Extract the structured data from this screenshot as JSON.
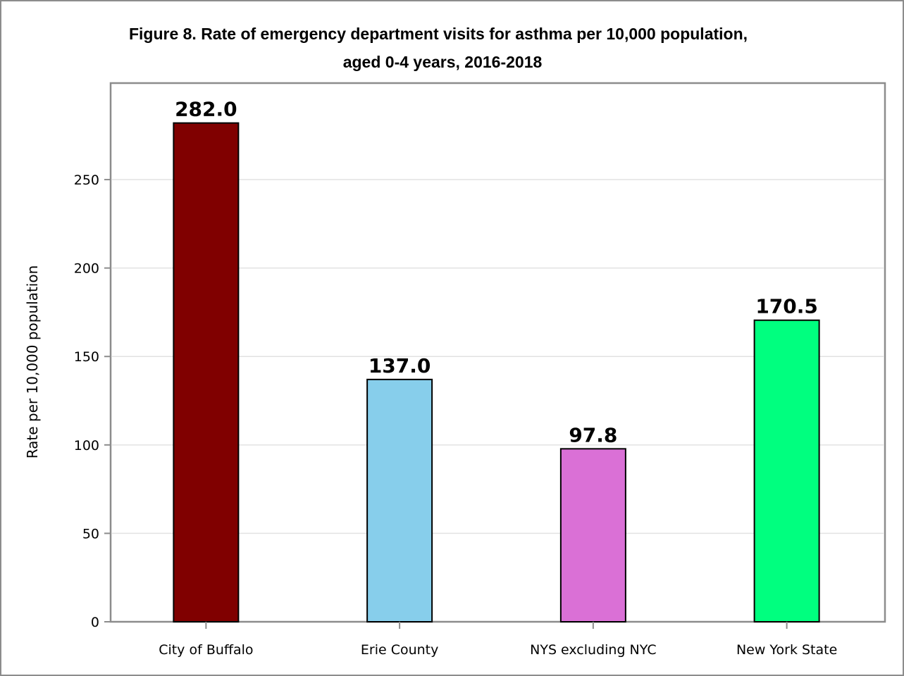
{
  "chart_data": {
    "type": "bar",
    "title_lines": [
      "Figure 8. Rate of emergency department visits for asthma per 10,000 population,",
      "aged 0-4 years, 2016-2018"
    ],
    "xlabel": "",
    "ylabel": "Rate per 10,000 population",
    "categories": [
      "City of Buffalo",
      "Erie County",
      "NYS excluding NYC",
      "New York State"
    ],
    "values": [
      282.0,
      137.0,
      97.8,
      170.5
    ],
    "data_labels": [
      "282.0",
      "137.0",
      "97.8",
      "170.5"
    ],
    "colors": [
      "#800000",
      "#87ceeb",
      "#da70d6",
      "#00ff7f"
    ],
    "yticks": [
      0,
      50,
      100,
      150,
      200,
      250
    ],
    "ylim": [
      0,
      297
    ],
    "grid": true,
    "legend": "none"
  }
}
